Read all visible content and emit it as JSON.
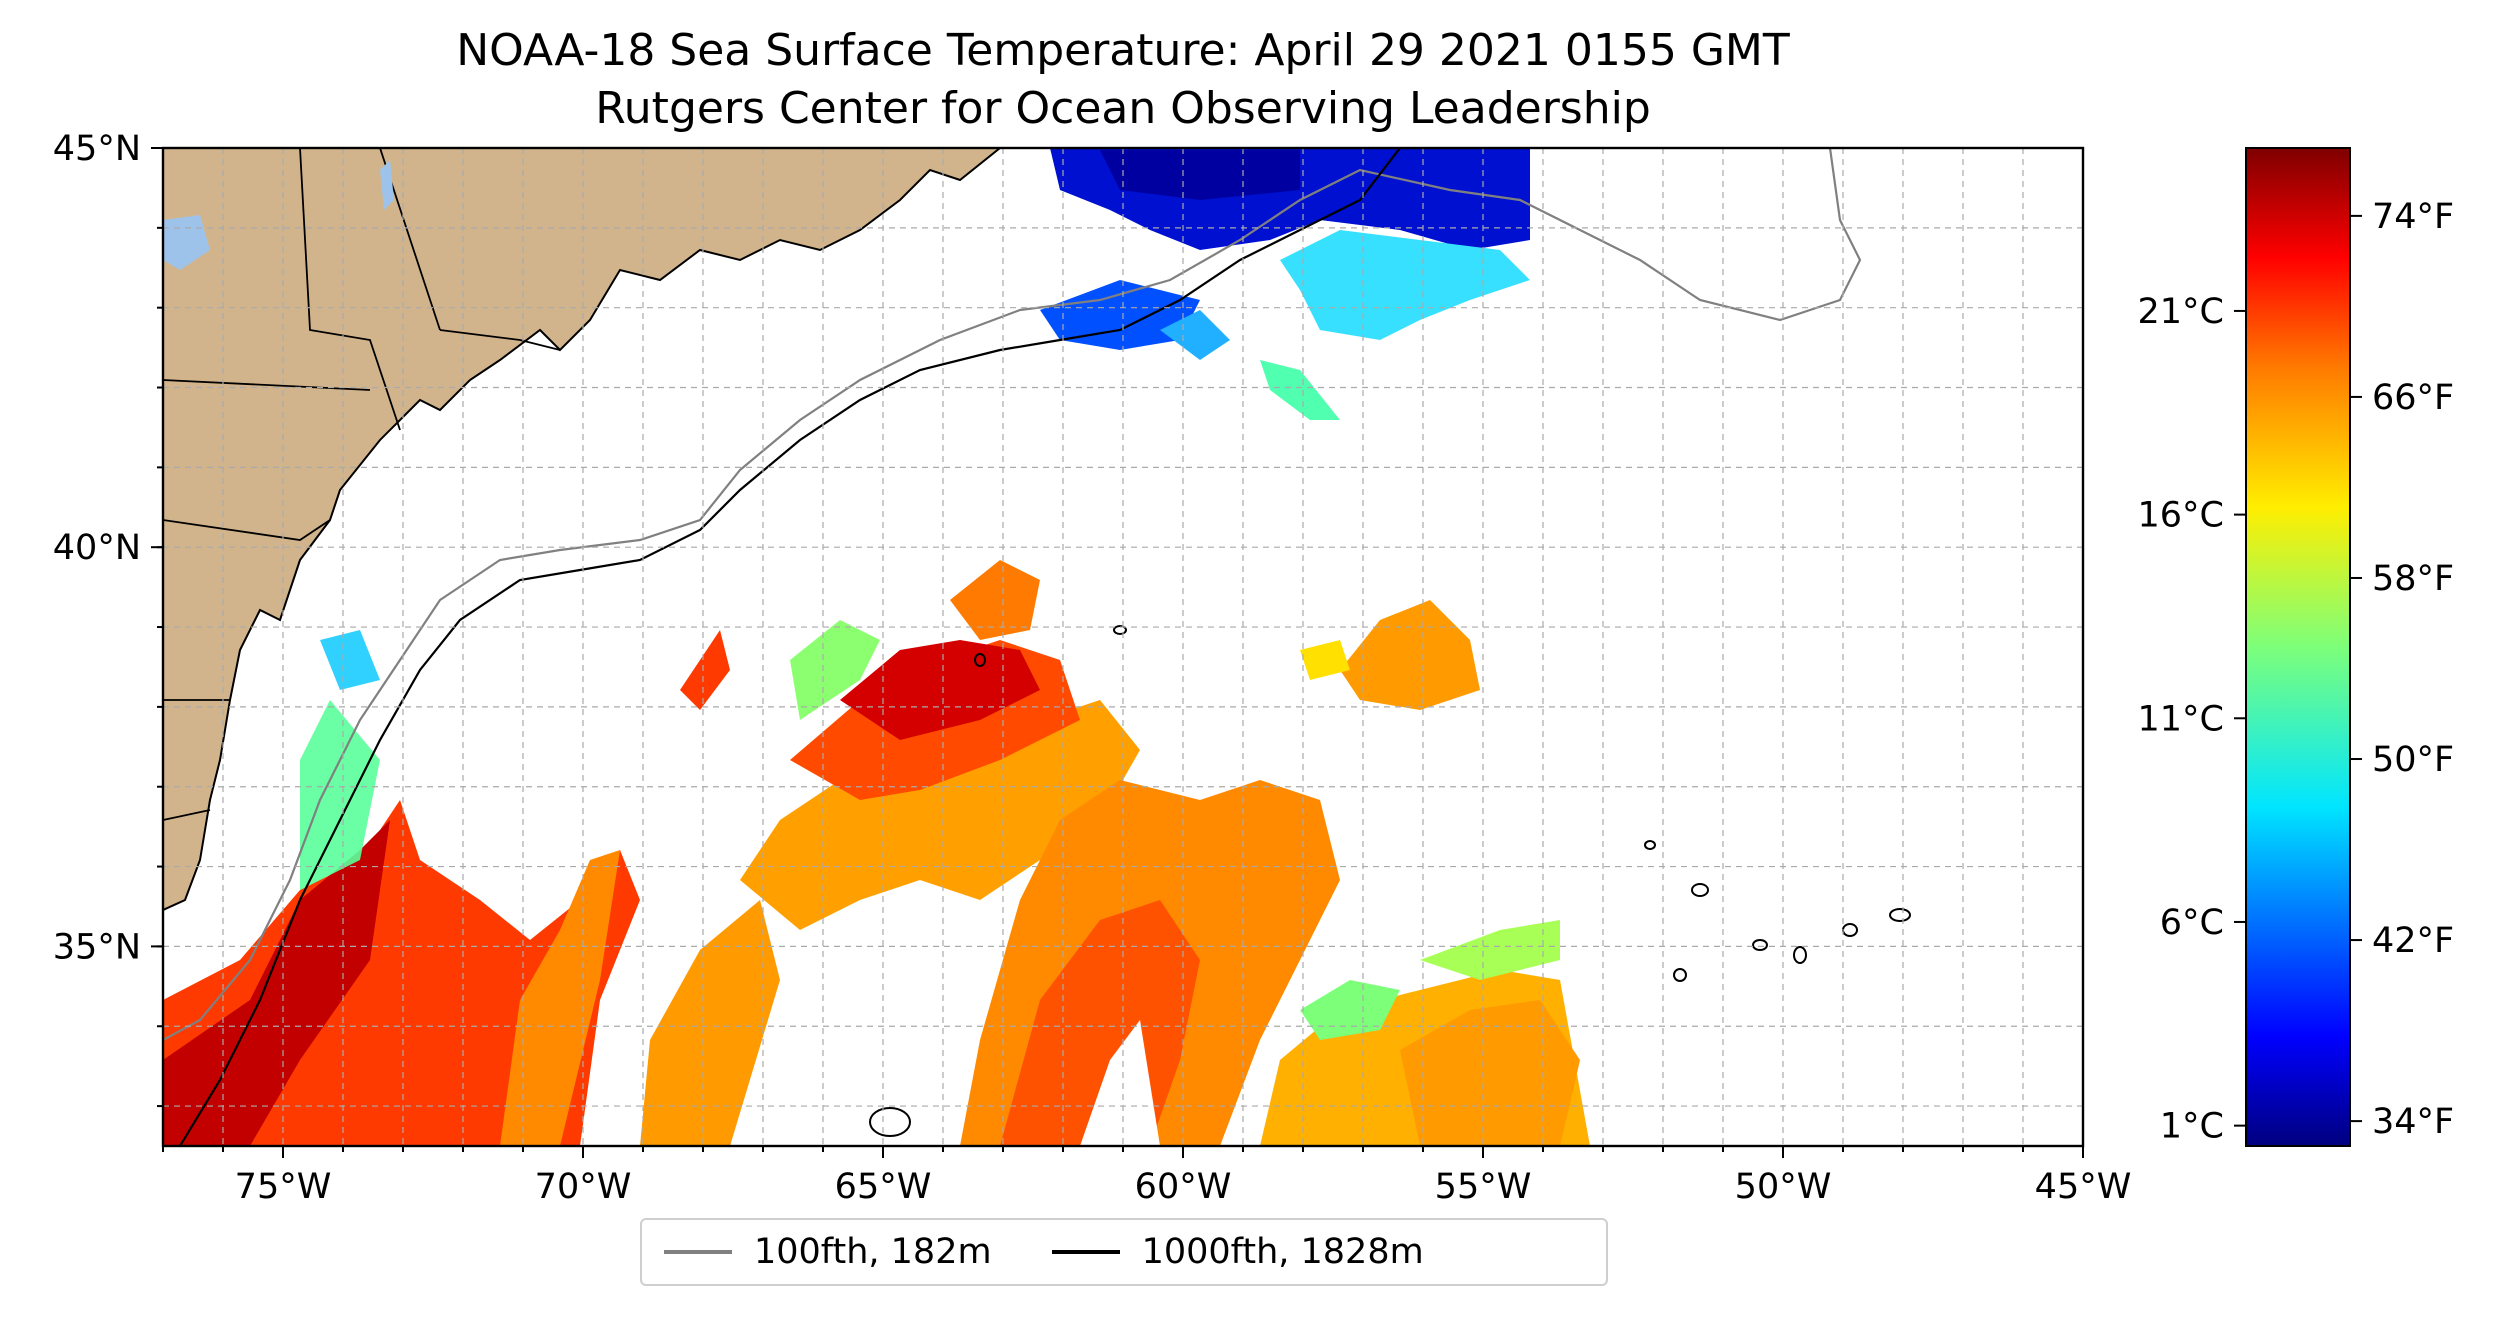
{
  "title": {
    "line1": "NOAA-18 Sea Surface Temperature: April 29 2021 0155 GMT",
    "line2": "Rutgers Center for Ocean Observing Leadership"
  },
  "map": {
    "lon_range": [
      -77,
      -45
    ],
    "lat_range": [
      32.5,
      45
    ],
    "lon_ticks": [
      {
        "value": -75,
        "label": "75°W"
      },
      {
        "value": -70,
        "label": "70°W"
      },
      {
        "value": -65,
        "label": "65°W"
      },
      {
        "value": -60,
        "label": "60°W"
      },
      {
        "value": -55,
        "label": "55°W"
      },
      {
        "value": -50,
        "label": "50°W"
      },
      {
        "value": -45,
        "label": "45°W"
      }
    ],
    "lat_ticks": [
      {
        "value": 45,
        "label": "45°N"
      },
      {
        "value": 40,
        "label": "40°N"
      },
      {
        "value": 35,
        "label": "35°N"
      }
    ],
    "gridlines": true,
    "land_color": "#d2b48c",
    "lake_color": "#9ec3ea"
  },
  "colorbar": {
    "colormap": "jet",
    "range_c": [
      0.5,
      25.0
    ],
    "celsius_ticks": [
      {
        "value": 21,
        "label": "21°C"
      },
      {
        "value": 16,
        "label": "16°C"
      },
      {
        "value": 11,
        "label": "11°C"
      },
      {
        "value": 6,
        "label": "6°C"
      },
      {
        "value": 1,
        "label": "1°C"
      }
    ],
    "fahrenheit_ticks": [
      {
        "value": 74,
        "label": "74°F"
      },
      {
        "value": 66,
        "label": "66°F"
      },
      {
        "value": 58,
        "label": "58°F"
      },
      {
        "value": 50,
        "label": "50°F"
      },
      {
        "value": 42,
        "label": "42°F"
      },
      {
        "value": 34,
        "label": "34°F"
      }
    ]
  },
  "legend": {
    "items": [
      {
        "label": "100fth, 182m",
        "color": "#808080"
      },
      {
        "label": "1000fth, 1828m",
        "color": "#000000"
      }
    ]
  }
}
